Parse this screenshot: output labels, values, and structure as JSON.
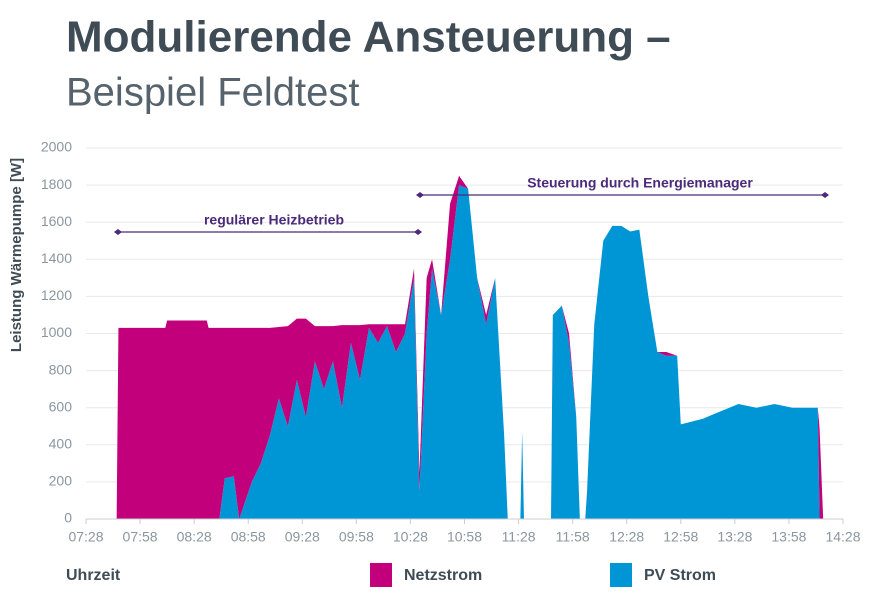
{
  "chart_data": {
    "type": "stacked-area",
    "title": "Modulierende Ansteuerung –",
    "subtitle": "Beispiel Feldtest",
    "x_label": "Uhrzeit",
    "y_label": "Leistung Wärmepumpe [W]",
    "annotations": [
      "regulärer Heizbetrieb",
      "Steuerung durch Energiemanager"
    ],
    "x": [
      465,
      466,
      480,
      492,
      493,
      515,
      516,
      522,
      525,
      530,
      533,
      540,
      545,
      550,
      555,
      560,
      565,
      570,
      575,
      580,
      585,
      590,
      595,
      600,
      605,
      610,
      615,
      620,
      625,
      630,
      633,
      637,
      640,
      645,
      650,
      655,
      660,
      665,
      670,
      675,
      680,
      682,
      689,
      690,
      691,
      706,
      707,
      712,
      716,
      720,
      722,
      725,
      726,
      730,
      735,
      740,
      745,
      750,
      755,
      760,
      765,
      770,
      776,
      778,
      790,
      800,
      810,
      820,
      830,
      840,
      854,
      855,
      857
    ],
    "series": [
      {
        "name": "Netzstrom",
        "color": "#c2007b",
        "values": [
          0,
          1030,
          1030,
          1030,
          1070,
          1070,
          1030,
          1030,
          810,
          800,
          1030,
          830,
          730,
          580,
          385,
          540,
          330,
          530,
          190,
          340,
          190,
          445,
          95,
          295,
          20,
          100,
          10,
          150,
          50,
          50,
          100,
          300,
          50,
          0,
          300,
          50,
          0,
          0,
          50,
          0,
          0,
          0,
          0,
          0,
          0,
          0,
          0,
          0,
          50,
          0,
          0,
          0,
          0,
          0,
          0,
          0,
          0,
          0,
          0,
          0,
          0,
          20,
          0,
          0,
          0,
          0,
          0,
          0,
          0,
          0,
          0,
          490,
          0
        ]
      },
      {
        "name": "PV Strom",
        "color": "#0096d6",
        "values": [
          0,
          0,
          0,
          0,
          0,
          0,
          0,
          0,
          220,
          230,
          0,
          200,
          300,
          450,
          650,
          500,
          750,
          550,
          850,
          700,
          850,
          600,
          950,
          750,
          1030,
          950,
          1040,
          900,
          1000,
          1300,
          150,
          1000,
          1350,
          1100,
          1400,
          1800,
          1780,
          1300,
          1050,
          1300,
          450,
          0,
          0,
          470,
          0,
          0,
          1100,
          1150,
          950,
          550,
          0,
          0,
          150,
          1050,
          1500,
          1580,
          1580,
          1550,
          1560,
          1200,
          900,
          880,
          880,
          510,
          540,
          580,
          620,
          600,
          620,
          600,
          600,
          0,
          0
        ]
      }
    ],
    "xlim": [
      448,
      868
    ],
    "xticks": [
      {
        "value": 448,
        "label": "07:28"
      },
      {
        "value": 478,
        "label": "07:58"
      },
      {
        "value": 508,
        "label": "08:28"
      },
      {
        "value": 538,
        "label": "08:58"
      },
      {
        "value": 568,
        "label": "09:28"
      },
      {
        "value": 598,
        "label": "09:58"
      },
      {
        "value": 628,
        "label": "10:28"
      },
      {
        "value": 658,
        "label": "10:58"
      },
      {
        "value": 688,
        "label": "11:28"
      },
      {
        "value": 718,
        "label": "11:58"
      },
      {
        "value": 748,
        "label": "12:28"
      },
      {
        "value": 778,
        "label": "12:58"
      },
      {
        "value": 808,
        "label": "13:28"
      },
      {
        "value": 838,
        "label": "13:58"
      },
      {
        "value": 868,
        "label": "14:28"
      }
    ],
    "ylim": [
      0,
      2000
    ],
    "yticks": [
      0,
      200,
      400,
      600,
      800,
      1000,
      1200,
      1400,
      1600,
      1800,
      2000
    ],
    "grid": true
  }
}
